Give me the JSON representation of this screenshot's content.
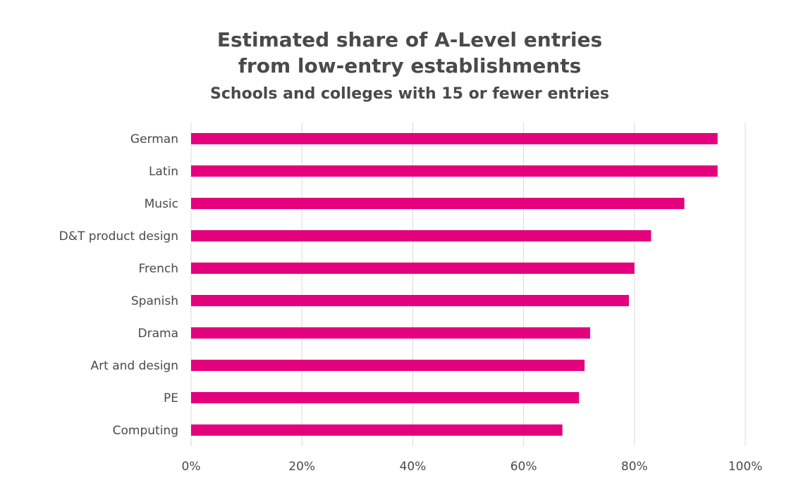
{
  "chart_data": {
    "type": "bar",
    "orientation": "horizontal",
    "title_lines": [
      "Estimated share of A-Level entries",
      "from low-entry establishments"
    ],
    "subtitle": "Schools and colleges with 15 or fewer entries",
    "xlabel": "",
    "ylabel": "",
    "categories": [
      "German",
      "Latin",
      "Music",
      "D&T product design",
      "French",
      "Spanish",
      "Drama",
      "Art and design",
      "PE",
      "Computing"
    ],
    "values": [
      0.95,
      0.95,
      0.89,
      0.83,
      0.8,
      0.79,
      0.72,
      0.71,
      0.7,
      0.67
    ],
    "xlim": [
      0,
      1
    ],
    "xticks": [
      0,
      0.2,
      0.4,
      0.6,
      0.8,
      1.0
    ],
    "xtick_labels": [
      "0%",
      "20%",
      "40%",
      "60%",
      "80%",
      "100%"
    ],
    "grid": "vertical",
    "legend": "none",
    "bar_color": "#e5007d",
    "text_color": "#4a4a4a",
    "grid_color": "#d9d9d9"
  }
}
